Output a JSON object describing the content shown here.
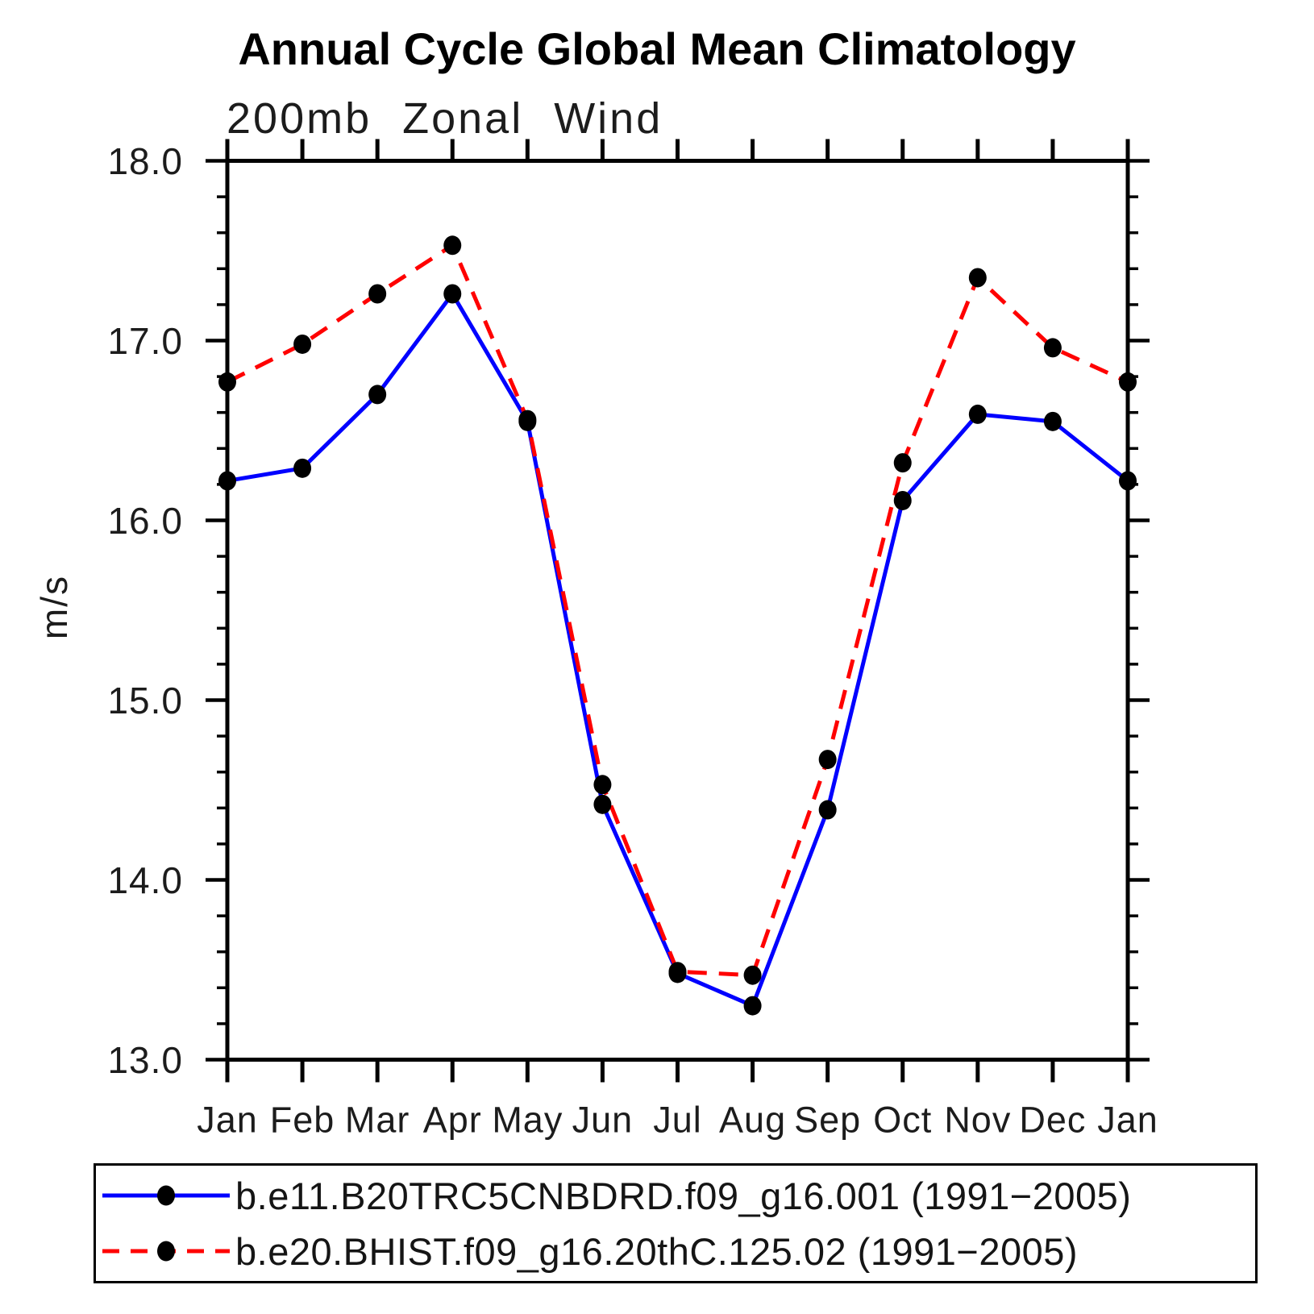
{
  "header": {
    "title": "Annual Cycle Global Mean Climatology",
    "subtitle": "200mb Zonal Wind"
  },
  "chart_data": {
    "type": "line",
    "title": "Annual Cycle Global Mean Climatology",
    "subtitle": "200mb Zonal Wind",
    "xlabel": "",
    "ylabel": "m/s",
    "ylim": [
      13.0,
      18.0
    ],
    "y_major_step": 1.0,
    "y_minor_step": 0.2,
    "y_tick_labels": [
      "18.0",
      "17.0",
      "16.0",
      "15.0",
      "14.0",
      "13.0"
    ],
    "categories": [
      "Jan",
      "Feb",
      "Mar",
      "Apr",
      "May",
      "Jun",
      "Jul",
      "Aug",
      "Sep",
      "Oct",
      "Nov",
      "Dec",
      "Jan"
    ],
    "grid": false,
    "legend_position": "bottom",
    "series": [
      {
        "name": "b.e11.B20TRC5CNBDRD.f09_g16.001 (1991−2005)",
        "color": "#0000ff",
        "line_style": "solid",
        "marker": "filled-circle",
        "marker_color": "#000000",
        "values": [
          16.22,
          16.29,
          16.7,
          17.26,
          16.55,
          14.42,
          13.48,
          13.3,
          14.39,
          16.11,
          16.59,
          16.55,
          16.22
        ]
      },
      {
        "name": "b.e20.BHIST.f09_g16.20thC.125.02 (1991−2005)",
        "color": "#ff0000",
        "line_style": "dashed",
        "marker": "filled-circle",
        "marker_color": "#000000",
        "values": [
          16.77,
          16.98,
          17.26,
          17.53,
          16.56,
          14.53,
          13.49,
          13.47,
          14.67,
          16.32,
          17.35,
          16.96,
          16.77
        ]
      }
    ]
  },
  "colors": {
    "axis": "#000000",
    "background": "#ffffff",
    "series_blue": "#0000ff",
    "series_red": "#ff0000",
    "marker": "#000000"
  }
}
